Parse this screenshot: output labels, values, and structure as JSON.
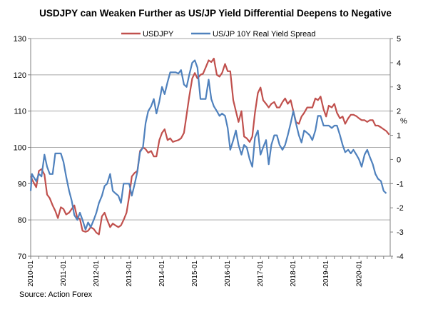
{
  "chart_data": {
    "type": "line",
    "title": "USDJPY can Weaken Further as US/JP Yield Differential Deepens to Negative",
    "source": "Source: Action Forex",
    "y_left": {
      "min": 70,
      "max": 130,
      "step": 10,
      "label": ""
    },
    "y_right": {
      "min": -4,
      "max": 5,
      "step": 1,
      "label": "%"
    },
    "x_ticks": [
      "2010-01",
      "2011-01",
      "2012-01",
      "2013-01",
      "2014-01",
      "2015-01",
      "2016-01",
      "2017-01",
      "2018-01",
      "2019-01",
      "2020-01"
    ],
    "x_range": [
      2010.0,
      2020.95
    ],
    "grid": "horizontal",
    "legend_position": "top",
    "colors": {
      "usdjpy": "#c0504d",
      "spread": "#4f81bd",
      "grid": "#a6a6a6",
      "axis": "#808080",
      "text": "#000000"
    },
    "series": [
      {
        "name": "USDJPY",
        "axis": "left",
        "color": "#c0504d",
        "points": [
          [
            2010.0,
            92
          ],
          [
            2010.08,
            90.5
          ],
          [
            2010.17,
            89
          ],
          [
            2010.25,
            93.5
          ],
          [
            2010.33,
            94
          ],
          [
            2010.42,
            92.5
          ],
          [
            2010.5,
            87
          ],
          [
            2010.58,
            86
          ],
          [
            2010.67,
            84
          ],
          [
            2010.75,
            82.5
          ],
          [
            2010.83,
            80.5
          ],
          [
            2010.92,
            83.5
          ],
          [
            2011.0,
            83
          ],
          [
            2011.08,
            81.5
          ],
          [
            2011.17,
            82
          ],
          [
            2011.25,
            83
          ],
          [
            2011.33,
            84
          ],
          [
            2011.42,
            80.5
          ],
          [
            2011.5,
            80.3
          ],
          [
            2011.58,
            77
          ],
          [
            2011.67,
            76.7
          ],
          [
            2011.75,
            77
          ],
          [
            2011.83,
            78
          ],
          [
            2011.92,
            77.5
          ],
          [
            2012.0,
            76.5
          ],
          [
            2012.08,
            76
          ],
          [
            2012.17,
            81
          ],
          [
            2012.25,
            82
          ],
          [
            2012.33,
            80
          ],
          [
            2012.42,
            78
          ],
          [
            2012.5,
            79
          ],
          [
            2012.58,
            78.5
          ],
          [
            2012.67,
            78
          ],
          [
            2012.75,
            78.5
          ],
          [
            2012.83,
            80
          ],
          [
            2012.92,
            82
          ],
          [
            2013.0,
            86.5
          ],
          [
            2013.08,
            92
          ],
          [
            2013.17,
            93
          ],
          [
            2013.25,
            93.5
          ],
          [
            2013.33,
            99
          ],
          [
            2013.42,
            100
          ],
          [
            2013.5,
            99.5
          ],
          [
            2013.58,
            98.5
          ],
          [
            2013.67,
            99
          ],
          [
            2013.75,
            97.5
          ],
          [
            2013.83,
            97.5
          ],
          [
            2013.92,
            102
          ],
          [
            2014.0,
            104
          ],
          [
            2014.08,
            105
          ],
          [
            2014.17,
            102
          ],
          [
            2014.25,
            102.5
          ],
          [
            2014.33,
            101.5
          ],
          [
            2014.42,
            101.8
          ],
          [
            2014.5,
            102
          ],
          [
            2014.58,
            102.5
          ],
          [
            2014.67,
            104
          ],
          [
            2014.75,
            109
          ],
          [
            2014.83,
            114
          ],
          [
            2014.92,
            119
          ],
          [
            2015.0,
            120.5
          ],
          [
            2015.08,
            119
          ],
          [
            2015.17,
            120
          ],
          [
            2015.25,
            120.3
          ],
          [
            2015.33,
            122
          ],
          [
            2015.42,
            124
          ],
          [
            2015.5,
            123.5
          ],
          [
            2015.58,
            124.5
          ],
          [
            2015.67,
            120
          ],
          [
            2015.75,
            119.5
          ],
          [
            2015.83,
            120.5
          ],
          [
            2015.92,
            123
          ],
          [
            2016.0,
            121
          ],
          [
            2016.08,
            121
          ],
          [
            2016.17,
            113
          ],
          [
            2016.25,
            110
          ],
          [
            2016.33,
            107
          ],
          [
            2016.42,
            110
          ],
          [
            2016.5,
            103
          ],
          [
            2016.58,
            102.5
          ],
          [
            2016.67,
            101.5
          ],
          [
            2016.75,
            103
          ],
          [
            2016.83,
            109.5
          ],
          [
            2016.92,
            115
          ],
          [
            2017.0,
            116.5
          ],
          [
            2017.08,
            113
          ],
          [
            2017.17,
            112
          ],
          [
            2017.25,
            111
          ],
          [
            2017.33,
            112
          ],
          [
            2017.42,
            112.5
          ],
          [
            2017.5,
            111
          ],
          [
            2017.58,
            111
          ],
          [
            2017.67,
            112.5
          ],
          [
            2017.75,
            113.5
          ],
          [
            2017.83,
            112
          ],
          [
            2017.92,
            113
          ],
          [
            2018.0,
            110
          ],
          [
            2018.08,
            107
          ],
          [
            2018.17,
            106.5
          ],
          [
            2018.25,
            108.5
          ],
          [
            2018.33,
            109.5
          ],
          [
            2018.42,
            111
          ],
          [
            2018.5,
            111
          ],
          [
            2018.58,
            111
          ],
          [
            2018.67,
            113.5
          ],
          [
            2018.75,
            113
          ],
          [
            2018.83,
            114
          ],
          [
            2018.92,
            110.5
          ],
          [
            2019.0,
            108.5
          ],
          [
            2019.08,
            111.5
          ],
          [
            2019.17,
            111
          ],
          [
            2019.25,
            112
          ],
          [
            2019.33,
            109.5
          ],
          [
            2019.42,
            108
          ],
          [
            2019.5,
            108.5
          ],
          [
            2019.58,
            106.5
          ],
          [
            2019.67,
            108
          ],
          [
            2019.75,
            109
          ],
          [
            2019.83,
            109
          ],
          [
            2019.92,
            108.6
          ],
          [
            2020.0,
            108
          ],
          [
            2020.08,
            107.5
          ],
          [
            2020.17,
            107.5
          ],
          [
            2020.25,
            107
          ],
          [
            2020.33,
            107.5
          ],
          [
            2020.42,
            107.5
          ],
          [
            2020.5,
            106
          ],
          [
            2020.58,
            106
          ],
          [
            2020.67,
            105.5
          ],
          [
            2020.75,
            105
          ],
          [
            2020.83,
            104.5
          ],
          [
            2020.92,
            103.5
          ]
        ]
      },
      {
        "name": "US/JP 10Y Real Yield Spread",
        "axis": "right",
        "color": "#4f81bd",
        "points": [
          [
            2010.0,
            -1.3
          ],
          [
            2010.04,
            -0.6
          ],
          [
            2010.08,
            -0.7
          ],
          [
            2010.17,
            -0.9
          ],
          [
            2010.25,
            -0.6
          ],
          [
            2010.33,
            -0.7
          ],
          [
            2010.42,
            0.2
          ],
          [
            2010.5,
            -0.3
          ],
          [
            2010.58,
            -0.6
          ],
          [
            2010.67,
            -0.6
          ],
          [
            2010.75,
            0.25
          ],
          [
            2010.83,
            0.25
          ],
          [
            2010.92,
            0.25
          ],
          [
            2011.0,
            -0.1
          ],
          [
            2011.08,
            -0.7
          ],
          [
            2011.17,
            -1.3
          ],
          [
            2011.25,
            -1.7
          ],
          [
            2011.33,
            -2.3
          ],
          [
            2011.42,
            -2.5
          ],
          [
            2011.5,
            -2.2
          ],
          [
            2011.58,
            -2.5
          ],
          [
            2011.67,
            -2.9
          ],
          [
            2011.75,
            -2.6
          ],
          [
            2011.83,
            -2.8
          ],
          [
            2011.92,
            -2.5
          ],
          [
            2012.0,
            -2.2
          ],
          [
            2012.08,
            -1.8
          ],
          [
            2012.17,
            -1.5
          ],
          [
            2012.25,
            -1.1
          ],
          [
            2012.33,
            -1.0
          ],
          [
            2012.42,
            -0.6
          ],
          [
            2012.5,
            -1.3
          ],
          [
            2012.58,
            -1.4
          ],
          [
            2012.67,
            -1.5
          ],
          [
            2012.75,
            -1.8
          ],
          [
            2012.83,
            -1.0
          ],
          [
            2012.92,
            -1.0
          ],
          [
            2013.0,
            -1.0
          ],
          [
            2013.08,
            -1.5
          ],
          [
            2013.17,
            -1.0
          ],
          [
            2013.25,
            -0.5
          ],
          [
            2013.33,
            0.3
          ],
          [
            2013.42,
            0.5
          ],
          [
            2013.5,
            1.5
          ],
          [
            2013.58,
            2.0
          ],
          [
            2013.67,
            2.2
          ],
          [
            2013.75,
            2.5
          ],
          [
            2013.83,
            1.9
          ],
          [
            2013.92,
            2.4
          ],
          [
            2014.0,
            3.0
          ],
          [
            2014.08,
            2.7
          ],
          [
            2014.17,
            3.2
          ],
          [
            2014.25,
            3.6
          ],
          [
            2014.33,
            3.6
          ],
          [
            2014.42,
            3.6
          ],
          [
            2014.5,
            3.55
          ],
          [
            2014.58,
            3.7
          ],
          [
            2014.67,
            3.1
          ],
          [
            2014.75,
            3.0
          ],
          [
            2014.83,
            3.5
          ],
          [
            2014.92,
            4.0
          ],
          [
            2015.0,
            4.1
          ],
          [
            2015.08,
            3.8
          ],
          [
            2015.17,
            2.5
          ],
          [
            2015.25,
            2.5
          ],
          [
            2015.33,
            2.5
          ],
          [
            2015.42,
            3.3
          ],
          [
            2015.5,
            2.5
          ],
          [
            2015.58,
            2.2
          ],
          [
            2015.67,
            2.0
          ],
          [
            2015.75,
            1.8
          ],
          [
            2015.83,
            1.9
          ],
          [
            2015.92,
            1.8
          ],
          [
            2016.0,
            1.3
          ],
          [
            2016.08,
            0.4
          ],
          [
            2016.17,
            0.8
          ],
          [
            2016.25,
            1.2
          ],
          [
            2016.33,
            0.6
          ],
          [
            2016.42,
            0.2
          ],
          [
            2016.5,
            0.6
          ],
          [
            2016.58,
            0.5
          ],
          [
            2016.67,
            0.0
          ],
          [
            2016.75,
            -0.3
          ],
          [
            2016.83,
            0.9
          ],
          [
            2016.92,
            1.2
          ],
          [
            2017.0,
            0.2
          ],
          [
            2017.08,
            0.5
          ],
          [
            2017.17,
            0.8
          ],
          [
            2017.25,
            -0.2
          ],
          [
            2017.33,
            0.6
          ],
          [
            2017.42,
            1.0
          ],
          [
            2017.5,
            1.0
          ],
          [
            2017.58,
            0.6
          ],
          [
            2017.67,
            0.4
          ],
          [
            2017.75,
            0.6
          ],
          [
            2017.83,
            1.0
          ],
          [
            2017.92,
            1.5
          ],
          [
            2018.0,
            2.0
          ],
          [
            2018.08,
            1.5
          ],
          [
            2018.17,
            1.0
          ],
          [
            2018.25,
            0.7
          ],
          [
            2018.33,
            1.2
          ],
          [
            2018.42,
            1.1
          ],
          [
            2018.5,
            1.0
          ],
          [
            2018.58,
            0.8
          ],
          [
            2018.67,
            1.2
          ],
          [
            2018.75,
            1.8
          ],
          [
            2018.83,
            1.8
          ],
          [
            2018.92,
            1.4
          ],
          [
            2019.0,
            1.4
          ],
          [
            2019.08,
            1.4
          ],
          [
            2019.17,
            1.3
          ],
          [
            2019.25,
            1.4
          ],
          [
            2019.33,
            1.4
          ],
          [
            2019.42,
            1.0
          ],
          [
            2019.5,
            0.6
          ],
          [
            2019.58,
            0.3
          ],
          [
            2019.67,
            0.4
          ],
          [
            2019.75,
            0.25
          ],
          [
            2019.83,
            0.4
          ],
          [
            2019.92,
            0.2
          ],
          [
            2020.0,
            0.0
          ],
          [
            2020.08,
            -0.3
          ],
          [
            2020.17,
            0.2
          ],
          [
            2020.25,
            0.4
          ],
          [
            2020.33,
            0.1
          ],
          [
            2020.42,
            -0.2
          ],
          [
            2020.5,
            -0.6
          ],
          [
            2020.58,
            -0.8
          ],
          [
            2020.67,
            -0.9
          ],
          [
            2020.75,
            -1.3
          ],
          [
            2020.83,
            -1.4
          ]
        ]
      }
    ]
  }
}
